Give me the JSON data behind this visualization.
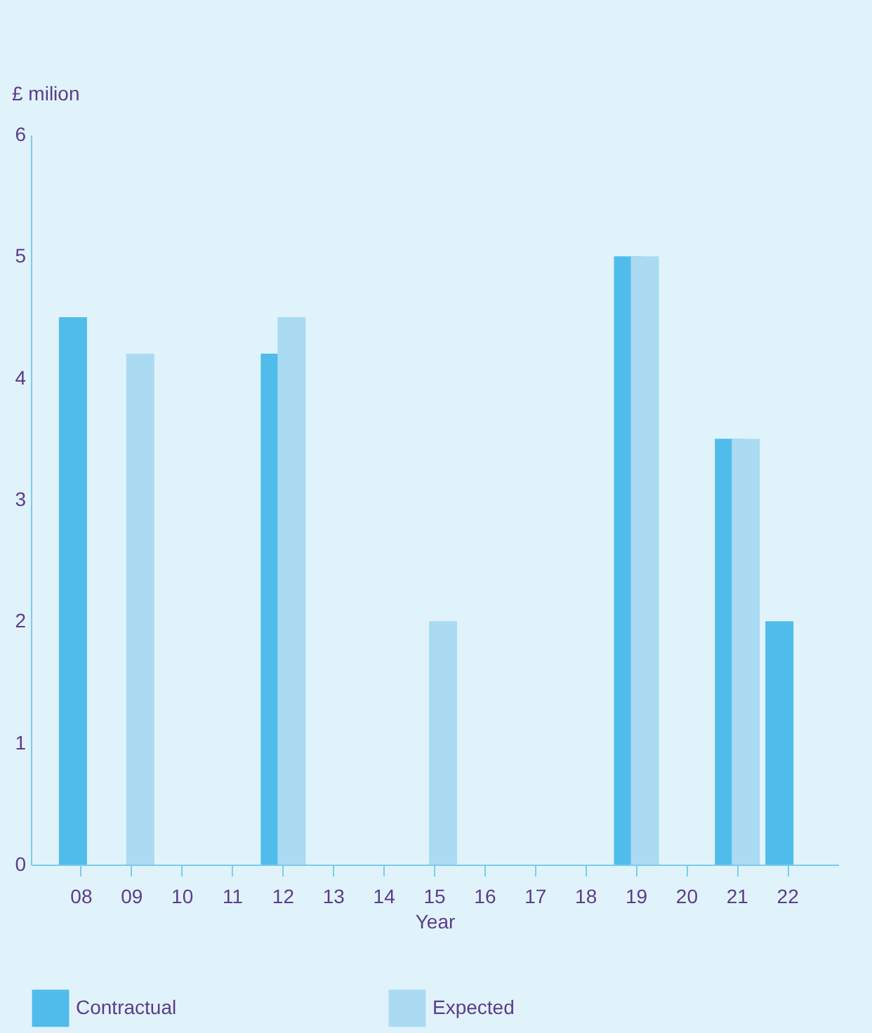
{
  "chart_data": {
    "type": "bar",
    "xlabel": "Year",
    "ylabel": "£ milion",
    "categories": [
      "08",
      "09",
      "10",
      "11",
      "12",
      "13",
      "14",
      "15",
      "16",
      "17",
      "18",
      "19",
      "20",
      "21",
      "22"
    ],
    "series": [
      {
        "name": "Contractual",
        "color": "#50bcec",
        "values": [
          4.5,
          null,
          null,
          null,
          4.2,
          null,
          null,
          null,
          null,
          null,
          null,
          5.0,
          null,
          3.5,
          2.0
        ]
      },
      {
        "name": "Expected",
        "color": "#abdaf3",
        "values": [
          null,
          4.2,
          null,
          null,
          4.5,
          null,
          null,
          2.0,
          null,
          null,
          null,
          5.0,
          null,
          3.5,
          null
        ]
      }
    ],
    "ylim": [
      0,
      6
    ],
    "yticks": [
      0,
      1,
      2,
      3,
      4,
      5,
      6
    ],
    "grid": false,
    "legend": "bottom"
  }
}
